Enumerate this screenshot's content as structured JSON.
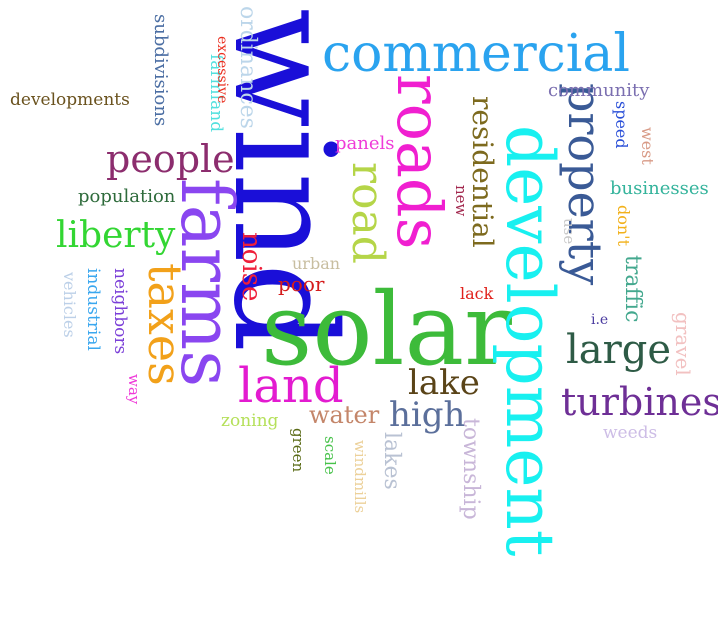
{
  "word_cloud": {
    "words": [
      {
        "text": "wind",
        "color": "#1a0fd8"
      },
      {
        "text": "solar",
        "color": "#3dbb3a"
      },
      {
        "text": "development",
        "color": "#18f0f0"
      },
      {
        "text": "farms",
        "color": "#8a46f0"
      },
      {
        "text": "commercial",
        "color": "#2aa3ef"
      },
      {
        "text": "roads",
        "color": "#f01fd0"
      },
      {
        "text": "property",
        "color": "#3a5a96"
      },
      {
        "text": "road",
        "color": "#b5d548"
      },
      {
        "text": "taxes",
        "color": "#f2a11a"
      },
      {
        "text": "land",
        "color": "#e31bd0"
      },
      {
        "text": "people",
        "color": "#8c2d6e"
      },
      {
        "text": "liberty",
        "color": "#33d633"
      },
      {
        "text": "large",
        "color": "#2e5b46"
      },
      {
        "text": "turbines",
        "color": "#6e2f96"
      },
      {
        "text": "residential",
        "color": "#7d6a1e"
      },
      {
        "text": "lake",
        "color": "#5a4418"
      },
      {
        "text": "high",
        "color": "#5b6f9b"
      },
      {
        "text": "noise",
        "color": "#ef1f3a"
      },
      {
        "text": "water",
        "color": "#c4866a"
      },
      {
        "text": "poor",
        "color": "#d41c1c"
      },
      {
        "text": "ordinances",
        "color": "#bcd6ea"
      },
      {
        "text": "developments",
        "color": "#6a521e"
      },
      {
        "text": "subdivisions",
        "color": "#4b6ea3"
      },
      {
        "text": "farmland",
        "color": "#52e0de"
      },
      {
        "text": "excessive",
        "color": "#ea2e1f"
      },
      {
        "text": "community",
        "color": "#7b6fb0"
      },
      {
        "text": "speed",
        "color": "#2a4fd8"
      },
      {
        "text": "west",
        "color": "#d89a86"
      },
      {
        "text": "businesses",
        "color": "#33b39b"
      },
      {
        "text": "don't",
        "color": "#f2b11a"
      },
      {
        "text": "traffic",
        "color": "#43a88e"
      },
      {
        "text": "use",
        "color": "#c8c8c8"
      },
      {
        "text": "new",
        "color": "#a2284e"
      },
      {
        "text": "panels",
        "color": "#ef3bd8"
      },
      {
        "text": "population",
        "color": "#2e6b3b"
      },
      {
        "text": "urban",
        "color": "#c8bea0"
      },
      {
        "text": "lack",
        "color": "#e0201a"
      },
      {
        "text": "i.e",
        "color": "#4a3ba0"
      },
      {
        "text": "gravel",
        "color": "#f2c1c1"
      },
      {
        "text": "industrial",
        "color": "#3aa7ef"
      },
      {
        "text": "neighbors",
        "color": "#7b3fd8"
      },
      {
        "text": "vehicles",
        "color": "#bcd0e8"
      },
      {
        "text": "way",
        "color": "#ef3bd8"
      },
      {
        "text": "zoning",
        "color": "#b5e05a"
      },
      {
        "text": "green",
        "color": "#5a6b16"
      },
      {
        "text": "scale",
        "color": "#47c24a"
      },
      {
        "text": "windmills",
        "color": "#ecd19a"
      },
      {
        "text": "lakes",
        "color": "#b9c2d3"
      },
      {
        "text": "township",
        "color": "#c8b6d8"
      },
      {
        "text": "weeds",
        "color": "#cdbde6"
      }
    ]
  }
}
